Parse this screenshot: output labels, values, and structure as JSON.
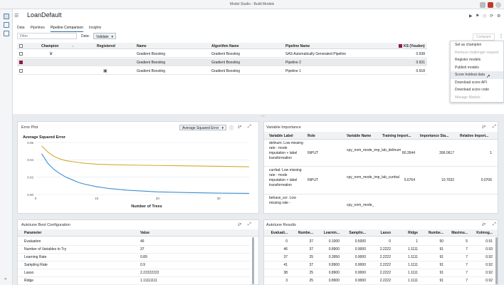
{
  "window": {
    "title": "Model Studio - Build Models"
  },
  "project": {
    "title": "LoanDefault"
  },
  "tabs": [
    "Data",
    "Pipelines",
    "Pipeline Comparison",
    "Insights"
  ],
  "filter": {
    "placeholder": "Filter"
  },
  "data_selector": {
    "label": "Data:",
    "value": "Validate"
  },
  "compare_button": "Compare",
  "comparison_table": {
    "columns": [
      "Champion",
      "Registered",
      "Name",
      "Algorithm Name",
      "Pipeline Name",
      "KS (Youden)"
    ],
    "rows": [
      {
        "name": "Gradient Boosting",
        "algorithm": "Gradient Boosting",
        "pipeline": "SAS Automatically Generated Pipeline",
        "ks": "0.938",
        "champion": true,
        "registered": false,
        "selected": false
      },
      {
        "name": "Gradient Boosting",
        "algorithm": "Gradient Boosting",
        "pipeline": "Pipeline 2",
        "ks": "0.931",
        "champion": false,
        "registered": false,
        "selected": true
      },
      {
        "name": "Gradient Boosting",
        "algorithm": "Gradient Boosting",
        "pipeline": "Pipeline 1",
        "ks": "0.918",
        "champion": false,
        "registered": true,
        "selected": false
      }
    ]
  },
  "context_menu": [
    {
      "label": "Set as champion",
      "disabled": false
    },
    {
      "label": "Remove challenger request",
      "disabled": true
    },
    {
      "label": "Register models",
      "disabled": false
    },
    {
      "label": "Publish models",
      "disabled": false
    },
    {
      "label": "Score holdout data",
      "disabled": false,
      "hover": true
    },
    {
      "label": "Download score API",
      "disabled": false
    },
    {
      "label": "Download score code",
      "disabled": false
    },
    {
      "label": "Manage Models",
      "disabled": true
    }
  ],
  "error_plot": {
    "title": "Error Plot",
    "selector": "Average Squared Error",
    "chart_data": {
      "type": "line",
      "title": "Average Squared Error",
      "xlabel": "Number of Trees",
      "ylabel": "",
      "xlim": [
        0,
        35
      ],
      "ylim": [
        0,
        0.06
      ],
      "xticks": [
        "0",
        "10",
        "20",
        "30"
      ],
      "yticks": [
        "0.00",
        "0.02",
        "0.04",
        "0.06"
      ],
      "series": [
        {
          "color": "#d4a830",
          "x": [
            1,
            2,
            3,
            4,
            5,
            6,
            7,
            8,
            10,
            12,
            15,
            20,
            25,
            30,
            35
          ],
          "y": [
            0.056,
            0.049,
            0.044,
            0.041,
            0.039,
            0.038,
            0.037,
            0.036,
            0.035,
            0.0345,
            0.034,
            0.0335,
            0.033,
            0.0325,
            0.032
          ]
        },
        {
          "color": "#3b8ed0",
          "x": [
            1,
            2,
            3,
            4,
            5,
            6,
            7,
            8,
            10,
            12,
            15,
            20,
            25,
            30,
            35
          ],
          "y": [
            0.047,
            0.036,
            0.029,
            0.024,
            0.02,
            0.017,
            0.014,
            0.012,
            0.009,
            0.007,
            0.005,
            0.003,
            0.0022,
            0.0016,
            0.0013
          ]
        }
      ]
    }
  },
  "variable_importance": {
    "title": "Variable Importance",
    "columns": [
      "Variable Label",
      "Role",
      "Variable Name",
      "Training Import...",
      "Importance Sta...",
      "Relative Import..."
    ],
    "rows": [
      {
        "label": "delinum: Low missing rate - mode imputation + label transformation",
        "role": "INPUT",
        "name": "cpy_nom_mode_imp_lab_delinum",
        "train": "80.3544",
        "std": "396.0617",
        "rel": "1"
      },
      {
        "label": "currbal: Low missing rate - mode imputation + label transformation",
        "role": "INPUT",
        "name": "cpy_nom_mode_imp_lab_currbal",
        "train": "5.6764",
        "std": "10.7032",
        "rel": "0.0706"
      },
      {
        "label": "behave_scr: Low missing rate -",
        "role": "",
        "name": "cpy_nom_mode_",
        "train": "",
        "std": "",
        "rel": ""
      }
    ]
  },
  "best_config": {
    "title": "Autotune Best Configuration",
    "columns": [
      "Parameter",
      "Value"
    ],
    "rows": [
      [
        "Evaluation",
        "46"
      ],
      [
        "Number of Variables to Try",
        "37"
      ],
      [
        "Learning Rate",
        "0.89"
      ],
      [
        "Sampling Rate",
        "0.9"
      ],
      [
        "Lasso",
        "2.22222222"
      ],
      [
        "Ridge",
        "1.11111111"
      ]
    ]
  },
  "autotune_results": {
    "title": "Autotune Results",
    "columns": [
      "Evaluati...",
      "Numbe...",
      "Learnin...",
      "Samplin...",
      "Lasso",
      "Ridge",
      "Numbe...",
      "Maximu...",
      "Kolmog..."
    ],
    "rows": [
      [
        "0",
        "37",
        "0.1000",
        "0.5000",
        "0",
        "1",
        "50",
        "5",
        "0.91"
      ],
      [
        "46",
        "37",
        "0.8900",
        "0.9000",
        "2.2222",
        "1.1111",
        "91",
        "7",
        "0.93"
      ],
      [
        "37",
        "25",
        "0.3950",
        "0.9000",
        "2.2222",
        "1.1111",
        "91",
        "7",
        "0.92"
      ],
      [
        "41",
        "37",
        "0.8900",
        "0.9000",
        "2.2222",
        "1.1111",
        "91",
        "7",
        "0.92"
      ],
      [
        "38",
        "25",
        "0.8900",
        "0.9000",
        "2.2222",
        "1.1111",
        "91",
        "7",
        "0.92"
      ],
      [
        "3",
        "25",
        "0.8900",
        "0.9000",
        "2.2222",
        "1.1111",
        "91",
        "7",
        "0.92"
      ]
    ]
  }
}
